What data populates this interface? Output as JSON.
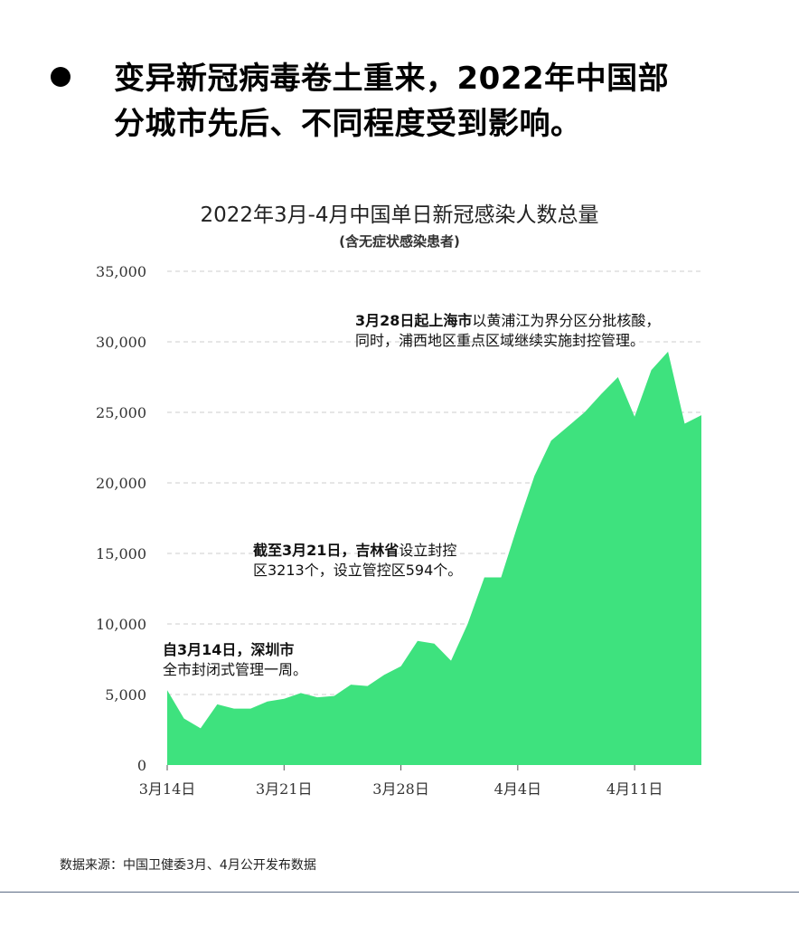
{
  "headline": {
    "text": "变异新冠病毒卷土重来，2022年中国部\n分城市先后、不同程度受到影响。"
  },
  "chart_data": {
    "type": "area",
    "title": "2022年3月-4月中国单日新冠感染人数总量",
    "subtitle": "(含无症状感染患者)",
    "xlabel": "",
    "ylabel": "",
    "ylim": [
      0,
      35000
    ],
    "yticks": [
      0,
      5000,
      10000,
      15000,
      20000,
      25000,
      30000,
      35000
    ],
    "ytick_labels": [
      "0",
      "5,000",
      "10,000",
      "15,000",
      "20,000",
      "25,000",
      "30,000",
      "35,000"
    ],
    "xtick_labels": [
      {
        "day": 0,
        "label": "3月14日"
      },
      {
        "day": 7,
        "label": "3月21日"
      },
      {
        "day": 14,
        "label": "3月28日"
      },
      {
        "day": 21,
        "label": "4月4日"
      },
      {
        "day": 28,
        "label": "4月11日"
      }
    ],
    "x": [
      "3/14",
      "3/15",
      "3/16",
      "3/17",
      "3/18",
      "3/19",
      "3/20",
      "3/21",
      "3/22",
      "3/23",
      "3/24",
      "3/25",
      "3/26",
      "3/27",
      "3/28",
      "3/29",
      "3/30",
      "3/31",
      "4/1",
      "4/2",
      "4/3",
      "4/4",
      "4/5",
      "4/6",
      "4/7",
      "4/8",
      "4/9",
      "4/10",
      "4/11",
      "4/12",
      "4/13",
      "4/14",
      "4/15"
    ],
    "series": [
      {
        "values": [
          5300,
          3300,
          2600,
          4300,
          4000,
          4000,
          4500,
          4700,
          5100,
          4800,
          4900,
          5700,
          5600,
          6400,
          7000,
          8800,
          8600,
          7400,
          10000,
          13300,
          13300,
          17000,
          20500,
          23000,
          24000,
          25000,
          26300,
          27500,
          24700,
          28000,
          29300,
          24200,
          24800
        ]
      }
    ],
    "grid": true,
    "colors": {
      "area": "#3ee27e",
      "grid": "#cccccc"
    }
  },
  "annotations": {
    "shenzhen_bold": "自3月14日，深圳市",
    "shenzhen_text": "全市封闭式管理一周。",
    "jilin_bold": "截至3月21日，吉林省",
    "jilin_text1": "设立封控",
    "jilin_text2": "区3213个，设立管控区594个。",
    "shanghai_bold": "3月28日起上海市",
    "shanghai_text1": "以黄浦江为界分区分批核酸，",
    "shanghai_text2": "同时，浦西地区重点区域继续实施封控管理。"
  },
  "source": "数据来源：中国卫健委3月、4月公开发布数据"
}
